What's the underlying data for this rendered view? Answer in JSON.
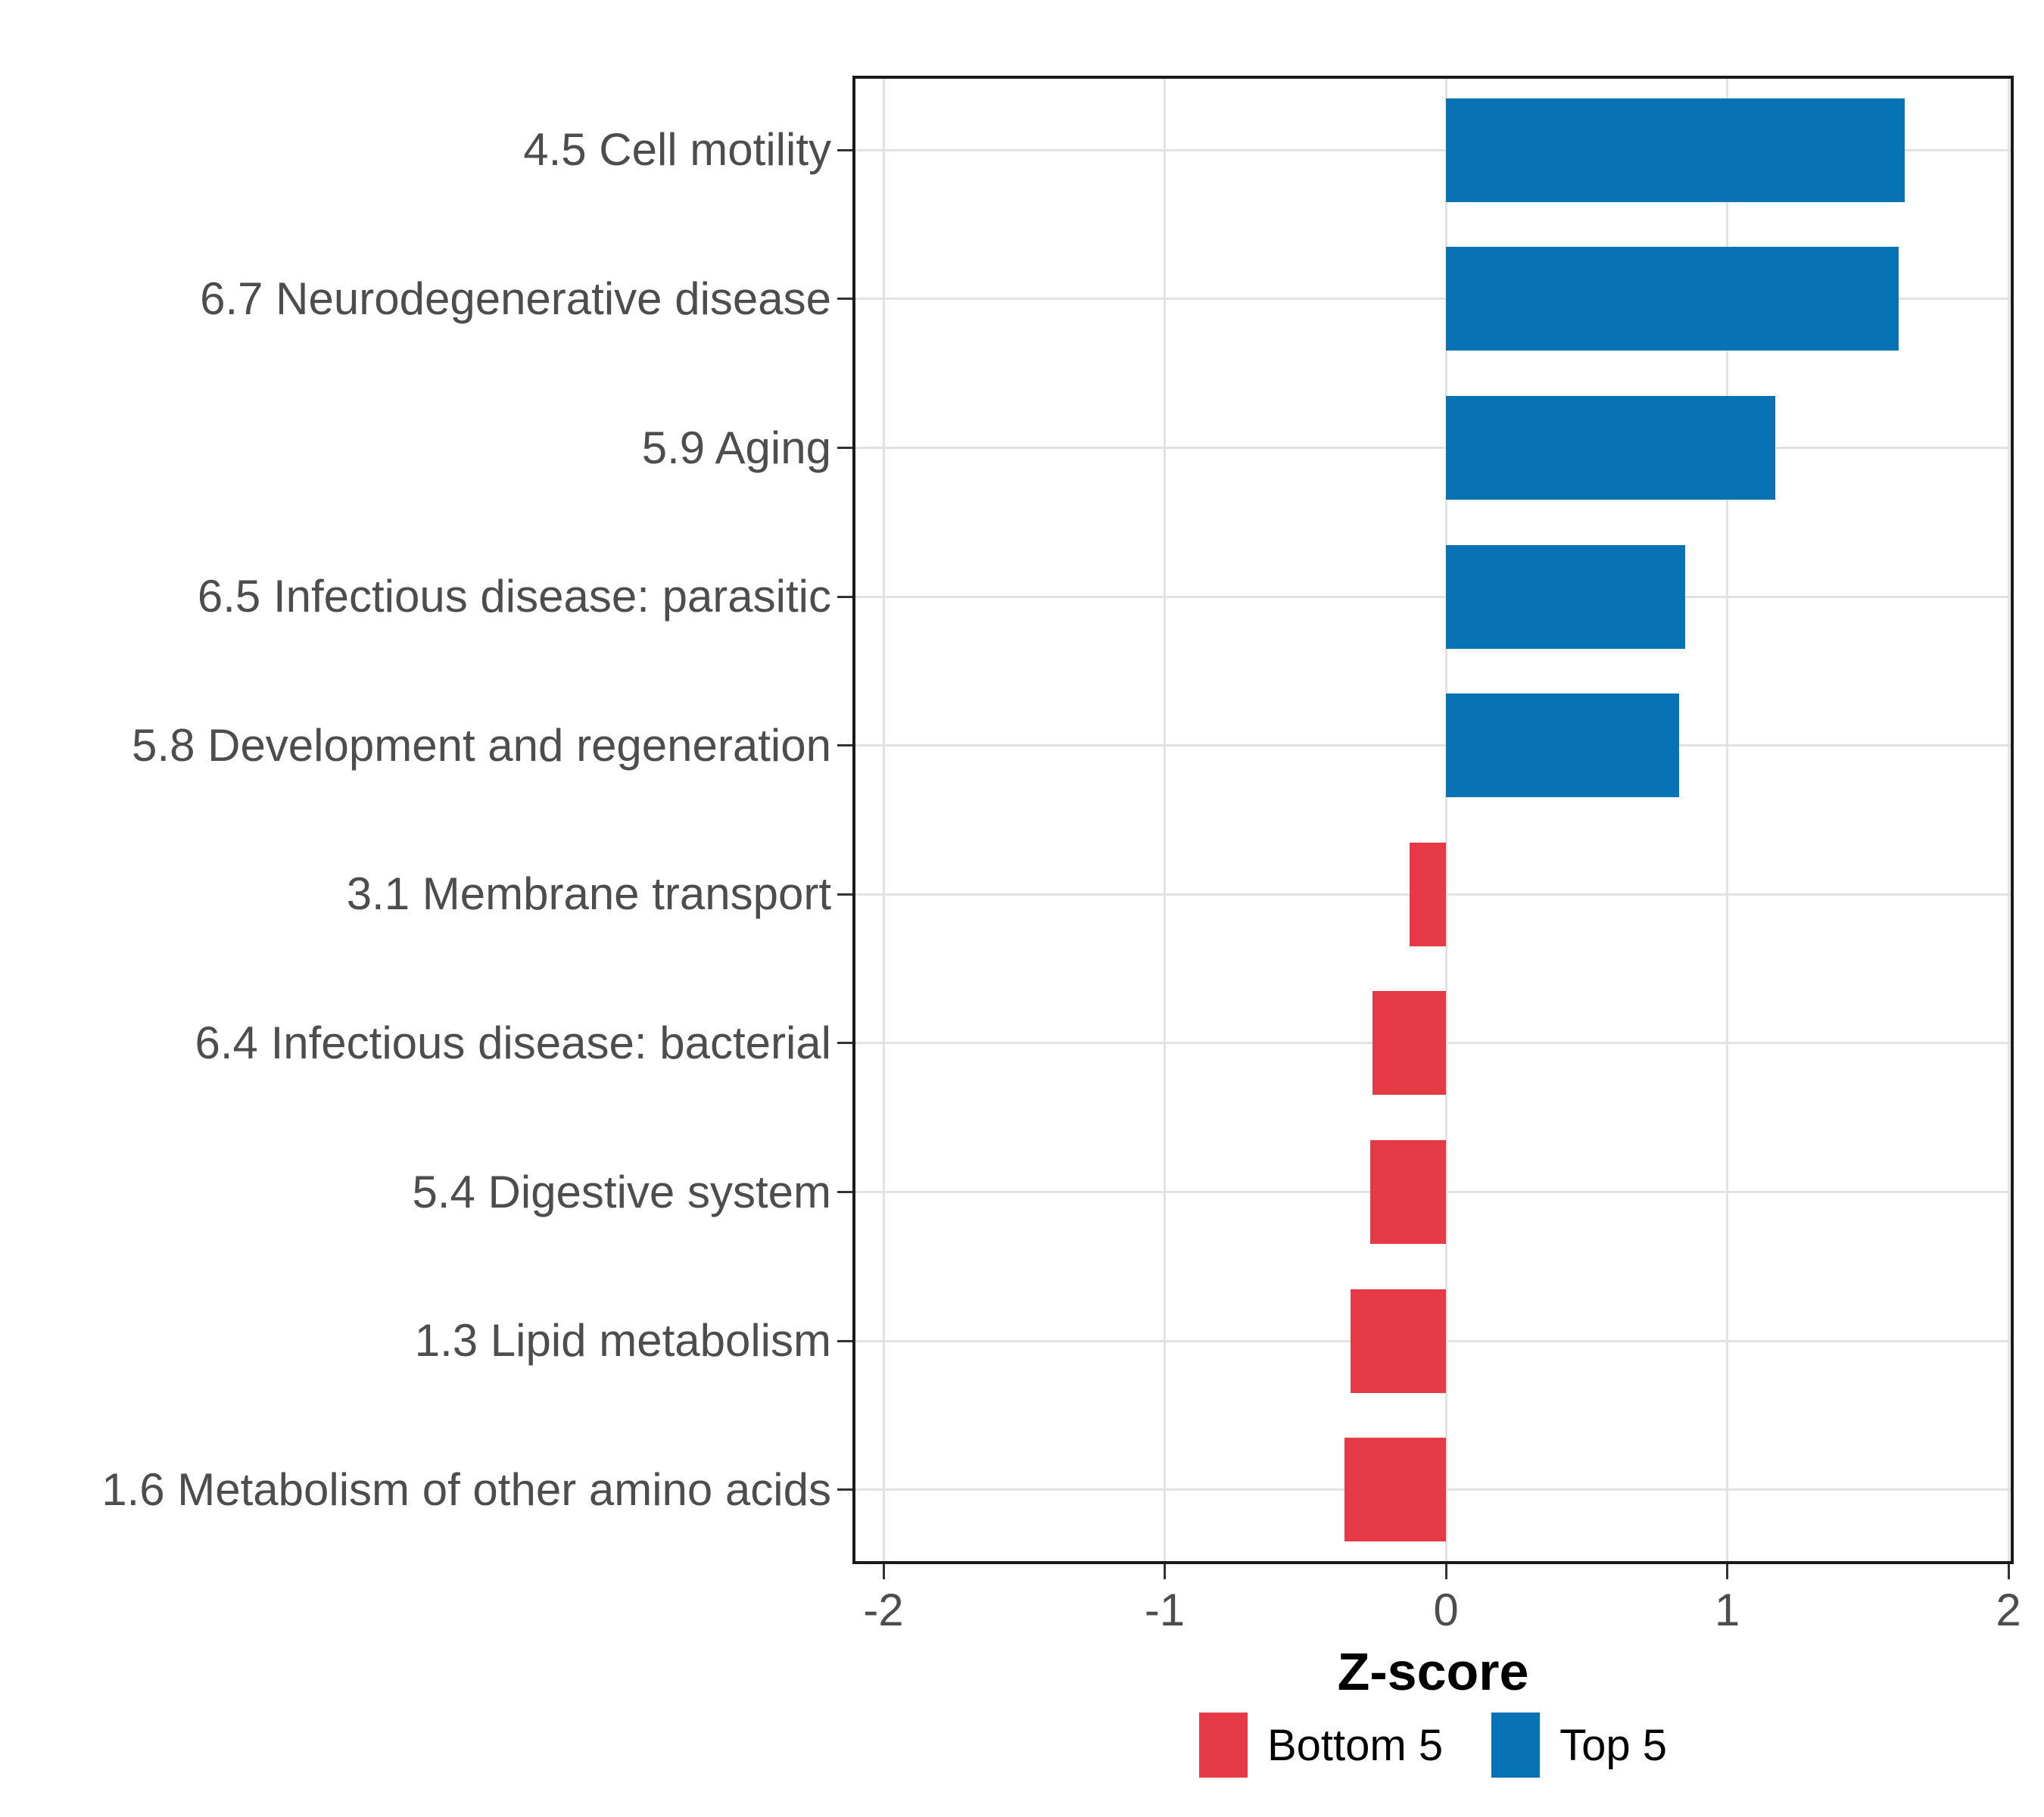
{
  "chart_data": {
    "type": "bar",
    "orientation": "horizontal",
    "title": "",
    "xlabel": "Z-score",
    "ylabel": "",
    "categories": [
      "4.5 Cell motility",
      "6.7 Neurodegenerative disease",
      "5.9 Aging",
      "6.5 Infectious disease: parasitic",
      "5.8 Development and regeneration",
      "3.1 Membrane transport",
      "6.4 Infectious disease: bacterial",
      "5.4 Digestive system",
      "1.3 Lipid metabolism",
      "1.6 Metabolism of other amino acids"
    ],
    "values": [
      1.63,
      1.61,
      1.17,
      0.85,
      0.83,
      -0.13,
      -0.26,
      -0.27,
      -0.34,
      -0.36
    ],
    "groups": [
      "Top 5",
      "Top 5",
      "Top 5",
      "Top 5",
      "Top 5",
      "Bottom 5",
      "Bottom 5",
      "Bottom 5",
      "Bottom 5",
      "Bottom 5"
    ],
    "x_ticks": [
      -2,
      -1,
      0,
      1,
      2
    ],
    "x_tick_labels": [
      "-2",
      "-1",
      "0",
      "1",
      "2"
    ],
    "xlim": [
      -2.11,
      2.02
    ],
    "grid": "major",
    "background": "#ffffff",
    "colors": {
      "Top 5": "#0773b4",
      "Bottom 5": "#e63946"
    },
    "legend": {
      "position": "bottom",
      "entries": [
        {
          "label": "Bottom 5",
          "color": "#e63946"
        },
        {
          "label": "Top 5",
          "color": "#0773b4"
        }
      ]
    }
  }
}
